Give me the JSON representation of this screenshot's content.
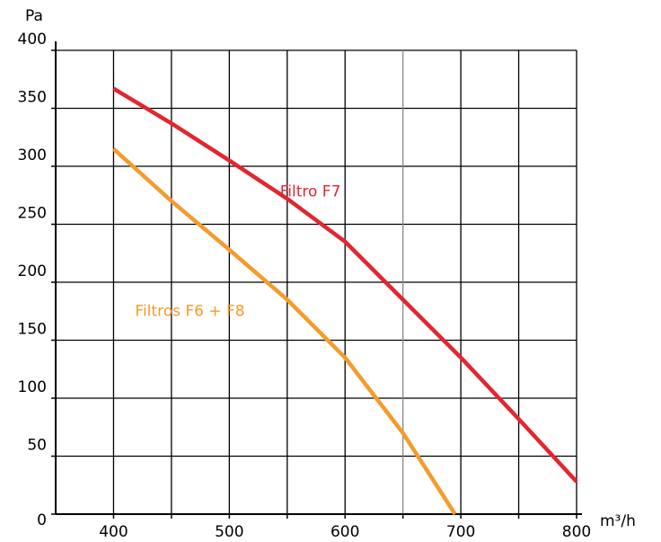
{
  "chart_data": {
    "type": "line",
    "y_label": "Pa",
    "x_label": "m³/h",
    "xlim": [
      350,
      800
    ],
    "xticks": [
      400,
      500,
      600,
      700,
      800
    ],
    "xminor_ticks": [
      450,
      550,
      650,
      750
    ],
    "ylim": [
      0,
      400
    ],
    "yticks": [
      0,
      50,
      100,
      150,
      200,
      250,
      300,
      350,
      400
    ],
    "grid": true,
    "series": [
      {
        "name": "Filtro F7",
        "color": "#e3262f",
        "x": [
          400,
          450,
          500,
          550,
          600,
          650,
          700,
          750,
          800
        ],
        "values": [
          367,
          337,
          305,
          272,
          235,
          185,
          135,
          82,
          28
        ]
      },
      {
        "name": "Filtros F6 + F8",
        "color": "#f39c2c",
        "x": [
          400,
          450,
          500,
          550,
          600,
          650,
          695
        ],
        "values": [
          315,
          270,
          228,
          185,
          135,
          70,
          0
        ]
      }
    ],
    "annotations": [
      {
        "text": "Filtro F7",
        "x": 570,
        "y": 278
      },
      {
        "text": "Filtros F6 + F8",
        "x": 466,
        "y": 175
      }
    ]
  }
}
